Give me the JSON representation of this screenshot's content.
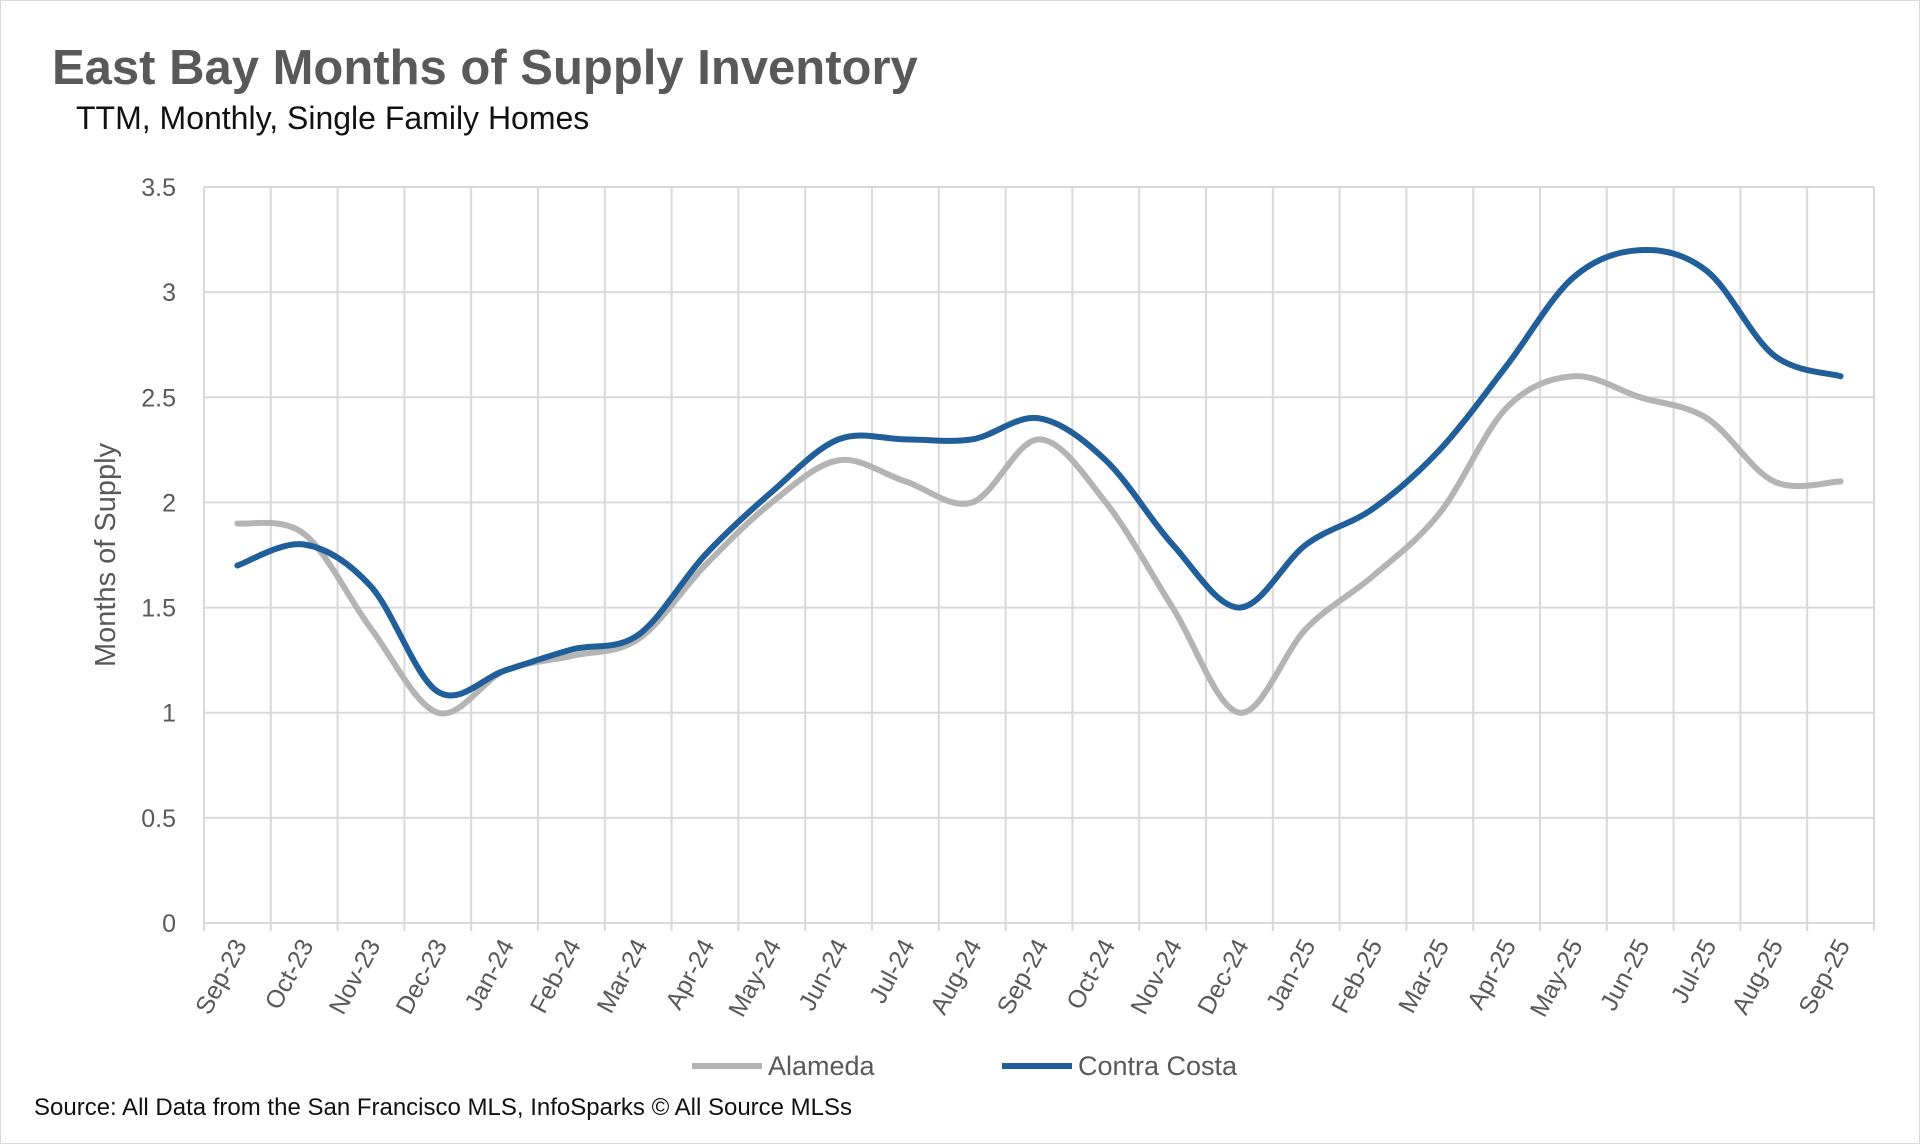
{
  "title": "East Bay Months of Supply Inventory",
  "subtitle": "TTM, Monthly, Single Family Homes",
  "source": "Source: All Data from the San Francisco MLS, InfoSparks © All Source MLSs",
  "chart_data": {
    "type": "line",
    "title": "East Bay Months of Supply Inventory",
    "subtitle": "TTM, Monthly, Single Family Homes",
    "ylabel": "Months of Supply",
    "xlabel": "",
    "ylim": [
      0,
      3.5
    ],
    "yticks": [
      "0",
      "0.5",
      "1",
      "1.5",
      "2",
      "2.5",
      "3",
      "3.5"
    ],
    "grid": true,
    "smooth": true,
    "legend_position": "bottom",
    "categories": [
      "Sep-23",
      "Oct-23",
      "Nov-23",
      "Dec-23",
      "Jan-24",
      "Feb-24",
      "Mar-24",
      "Apr-24",
      "May-24",
      "Jun-24",
      "Jul-24",
      "Aug-24",
      "Sep-24",
      "Oct-24",
      "Nov-24",
      "Dec-24",
      "Jan-25",
      "Feb-25",
      "Mar-25",
      "Apr-25",
      "May-25",
      "Jun-25",
      "Jul-25",
      "Aug-25",
      "Sep-25"
    ],
    "series": [
      {
        "name": "Alameda",
        "color": "#b4b4b4",
        "values": [
          1.9,
          1.85,
          1.4,
          1.0,
          1.2,
          1.27,
          1.35,
          1.7,
          2.0,
          2.2,
          2.1,
          2.0,
          2.3,
          2.0,
          1.5,
          1.0,
          1.4,
          1.65,
          1.95,
          2.45,
          2.6,
          2.5,
          2.4,
          2.1,
          2.1
        ]
      },
      {
        "name": "Contra Costa",
        "color": "#215f9a",
        "values": [
          1.7,
          1.8,
          1.6,
          1.1,
          1.2,
          1.3,
          1.37,
          1.75,
          2.05,
          2.3,
          2.3,
          2.3,
          2.4,
          2.2,
          1.8,
          1.5,
          1.8,
          1.97,
          2.25,
          2.65,
          3.07,
          3.2,
          3.1,
          2.7,
          2.6
        ]
      }
    ]
  }
}
